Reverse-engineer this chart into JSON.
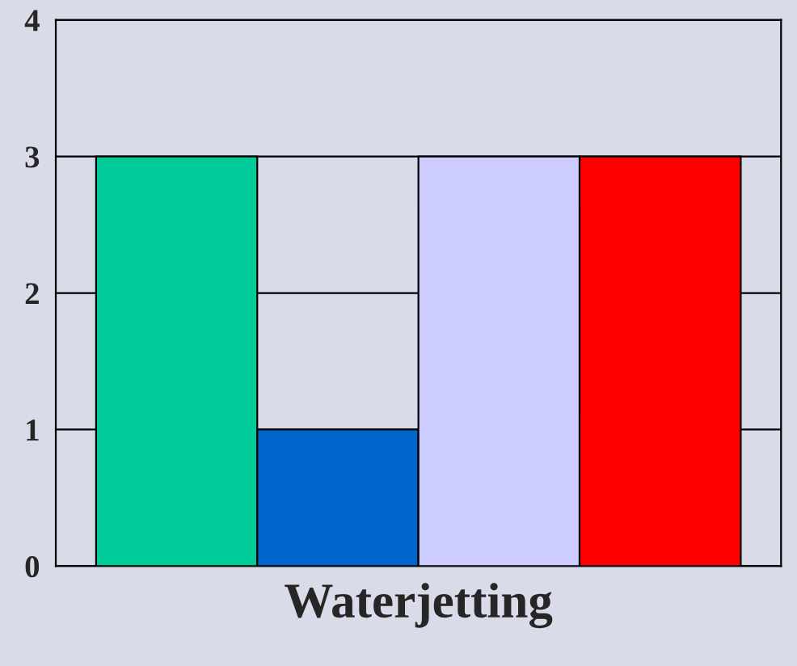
{
  "chart_data": {
    "type": "bar",
    "xlabel": "Waterjetting",
    "categories": [
      null,
      null,
      null,
      null
    ],
    "values": [
      3,
      1,
      3,
      3
    ],
    "colors": [
      "#00cc99",
      "#0066cc",
      "#ccccff",
      "#ff0000"
    ],
    "ylim": [
      0,
      4
    ],
    "yticks": [
      0,
      1,
      2,
      3,
      4
    ],
    "grid": "y"
  }
}
